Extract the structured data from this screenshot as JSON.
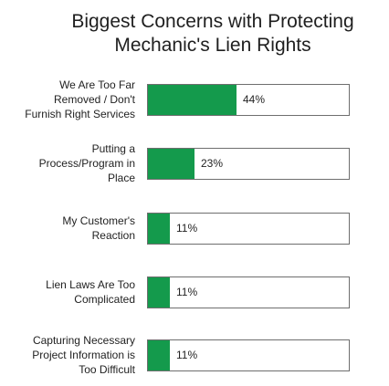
{
  "chart_data": {
    "type": "bar",
    "orientation": "horizontal",
    "title": "Biggest Concerns with Protecting Mechanic's Lien Rights",
    "title_lines": [
      "Biggest Concerns with Protecting",
      "Mechanic's Lien Rights"
    ],
    "categories": [
      [
        "We Are Too Far",
        "Removed / Don't",
        "Furnish Right Services"
      ],
      [
        "Putting a",
        "Process/Program in",
        "Place"
      ],
      [
        "My Customer's",
        "Reaction"
      ],
      [
        "Lien Laws Are Too",
        "Complicated"
      ],
      [
        "Capturing Necessary",
        "Project Information is",
        "Too Difficult"
      ]
    ],
    "values": [
      44,
      23,
      11,
      11,
      11
    ],
    "value_labels": [
      "44%",
      "23%",
      "11%",
      "11%",
      "11%"
    ],
    "xlim": [
      0,
      100
    ],
    "bar_color": "#149a4c",
    "grid": false,
    "legend": "none"
  }
}
